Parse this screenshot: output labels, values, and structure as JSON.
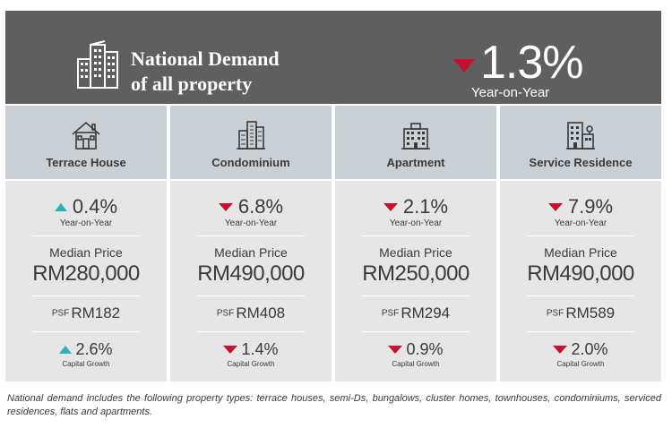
{
  "header": {
    "title_line1": "National Demand",
    "title_line2": "of all property",
    "yoy_direction": "down",
    "yoy_value": "1.3%",
    "yoy_label": "Year-on-Year",
    "icon": "city-buildings-icon"
  },
  "colors": {
    "header_bg": "#5f5f5f",
    "column_top_bg": "#c9d0d6",
    "column_body_bg": "#e6e6e6",
    "up_color": "#2bb3b3",
    "down_color": "#c8102e"
  },
  "columns": [
    {
      "type": "Terrace House",
      "icon": "house-icon",
      "yoy_direction": "up",
      "yoy_value": "0.4%",
      "yoy_label": "Year-on-Year",
      "median_label": "Median Price",
      "median_value": "RM280,000",
      "psf_label": "PSF",
      "psf_value": "RM182",
      "capital_direction": "up",
      "capital_value": "2.6%",
      "capital_label": "Capital Growth"
    },
    {
      "type": "Condominium",
      "icon": "condominium-icon",
      "yoy_direction": "down",
      "yoy_value": "6.8%",
      "yoy_label": "Year-on-Year",
      "median_label": "Median Price",
      "median_value": "RM490,000",
      "psf_label": "PSF",
      "psf_value": "RM408",
      "capital_direction": "down",
      "capital_value": "1.4%",
      "capital_label": "Capital Growth"
    },
    {
      "type": "Apartment",
      "icon": "apartment-icon",
      "yoy_direction": "down",
      "yoy_value": "2.1%",
      "yoy_label": "Year-on-Year",
      "median_label": "Median Price",
      "median_value": "RM250,000",
      "psf_label": "PSF",
      "psf_value": "RM294",
      "capital_direction": "down",
      "capital_value": "0.9%",
      "capital_label": "Capital Growth"
    },
    {
      "type": "Service Residence",
      "icon": "service-residence-icon",
      "yoy_direction": "down",
      "yoy_value": "7.9%",
      "yoy_label": "Year-on-Year",
      "median_label": "Median Price",
      "median_value": "RM490,000",
      "psf_label": "PSF",
      "psf_value": "RM589",
      "capital_direction": "down",
      "capital_value": "2.0%",
      "capital_label": "Capital Growth"
    }
  ],
  "footnote": "National demand includes the following property types: terrace houses, semi-Ds, bungalows, cluster homes, townhouses, condominiums, serviced residences, flats and apartments."
}
